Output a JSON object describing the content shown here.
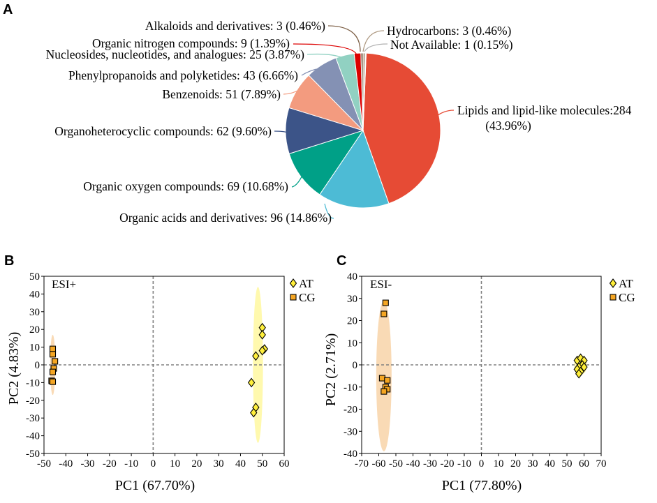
{
  "panels": {
    "a": "A",
    "b": "B",
    "c": "C"
  },
  "chart_data": [
    {
      "type": "pie",
      "panel": "A",
      "slices": [
        {
          "name": "Lipids and lipid-like molecules",
          "count": 284,
          "percent": 43.96,
          "color": "#e64b35",
          "label": "Lipids and lipid-like molecules:284",
          "label2": "(43.96%)"
        },
        {
          "name": "Organic acids and derivatives",
          "count": 96,
          "percent": 14.86,
          "color": "#4dbbd5",
          "label": "Organic acids and derivatives: 96 (14.86%)"
        },
        {
          "name": "Organic oxygen compounds",
          "count": 69,
          "percent": 10.68,
          "color": "#00a087",
          "label": "Organic oxygen compounds: 69 (10.68%)"
        },
        {
          "name": "Organoheterocyclic compounds",
          "count": 62,
          "percent": 9.6,
          "color": "#3c5488",
          "label": "Organoheterocyclic compounds: 62 (9.60%)"
        },
        {
          "name": "Benzenoids",
          "count": 51,
          "percent": 7.89,
          "color": "#f39b7f",
          "label": "Benzenoids: 51 (7.89%)"
        },
        {
          "name": "Phenylpropanoids and polyketides",
          "count": 43,
          "percent": 6.66,
          "color": "#8491b4",
          "label": "Phenylpropanoids and polyketides: 43 (6.66%)"
        },
        {
          "name": "Nucleosides, nucleotides, and analogues",
          "count": 25,
          "percent": 3.87,
          "color": "#91d1c2",
          "label": "Nucleosides, nucleotides, and analogues: 25 (3.87%)"
        },
        {
          "name": "Organic nitrogen compounds",
          "count": 9,
          "percent": 1.39,
          "color": "#dc0000",
          "label": "Organic nitrogen compounds: 9 (1.39%)"
        },
        {
          "name": "Alkaloids and derivatives",
          "count": 3,
          "percent": 0.46,
          "color": "#7e6148",
          "label": "Alkaloids and derivatives: 3 (0.46%)"
        },
        {
          "name": "Hydrocarbons",
          "count": 3,
          "percent": 0.46,
          "color": "#b09c85",
          "label": "Hydrocarbons: 3 (0.46%)"
        },
        {
          "name": "Not Available",
          "count": 1,
          "percent": 0.15,
          "color": "#c9c9c9",
          "label": "Not Available: 1 (0.15%)"
        }
      ]
    },
    {
      "type": "scatter",
      "panel": "B",
      "annotation": "ESI+",
      "xlabel": "PC1 (67.70%)",
      "ylabel": "PC2 (4.83%)",
      "xlim": [
        -50,
        60
      ],
      "ylim": [
        -50,
        50
      ],
      "xticks": [
        -50,
        -40,
        -30,
        -20,
        -10,
        0,
        10,
        20,
        30,
        40,
        50,
        60
      ],
      "yticks": [
        -50,
        -40,
        -30,
        -20,
        -10,
        0,
        10,
        20,
        30,
        40,
        50
      ],
      "legend": [
        "AT",
        "CG"
      ],
      "series": [
        {
          "name": "AT",
          "marker": "diamond",
          "color": "#ffef3a",
          "ellipse": {
            "cx": 48,
            "cy": 0,
            "rx": 2.3,
            "ry": 44
          },
          "points": [
            [
              50,
              21
            ],
            [
              50,
              17
            ],
            [
              51,
              9
            ],
            [
              50,
              8
            ],
            [
              47,
              5
            ],
            [
              45,
              -10
            ],
            [
              47,
              -24
            ],
            [
              46,
              -27
            ]
          ]
        },
        {
          "name": "CG",
          "marker": "square",
          "color": "#f5a623",
          "ellipse": {
            "cx": -46,
            "cy": 0,
            "rx": 1.2,
            "ry": 17
          },
          "points": [
            [
              -46,
              9
            ],
            [
              -46,
              6
            ],
            [
              -45,
              2
            ],
            [
              -45.5,
              -2
            ],
            [
              -46,
              -4
            ],
            [
              -46.5,
              -9
            ],
            [
              -46,
              -9.5
            ]
          ]
        }
      ]
    },
    {
      "type": "scatter",
      "panel": "C",
      "annotation": "ESI-",
      "xlabel": "PC1 (77.80%)",
      "ylabel": "PC2 (2.71%)",
      "xlim": [
        -70,
        70
      ],
      "ylim": [
        -40,
        40
      ],
      "xticks": [
        -70,
        -60,
        -50,
        -40,
        -30,
        -20,
        -10,
        0,
        10,
        20,
        30,
        40,
        50,
        60,
        70
      ],
      "yticks": [
        -40,
        -30,
        -20,
        -10,
        0,
        10,
        20,
        30,
        40
      ],
      "legend": [
        "AT",
        "CG"
      ],
      "series": [
        {
          "name": "AT",
          "marker": "diamond",
          "color": "#ffef3a",
          "ellipse": {
            "cx": 58,
            "cy": 0,
            "rx": 3.8,
            "ry": 4.5
          },
          "points": [
            [
              56,
              2
            ],
            [
              58,
              3
            ],
            [
              60,
              2
            ],
            [
              59,
              0
            ],
            [
              57,
              -1
            ],
            [
              60,
              -1
            ],
            [
              56,
              -2
            ],
            [
              58,
              -3
            ],
            [
              57,
              -4
            ]
          ]
        },
        {
          "name": "CG",
          "marker": "square",
          "color": "#f5a623",
          "ellipse": {
            "cx": -57,
            "cy": -5,
            "rx": 4.5,
            "ry": 34
          },
          "points": [
            [
              -56,
              28
            ],
            [
              -57,
              23
            ],
            [
              -58,
              -6
            ],
            [
              -55,
              -7
            ],
            [
              -56,
              -10
            ],
            [
              -55,
              -11
            ],
            [
              -57,
              -12
            ]
          ]
        }
      ]
    }
  ]
}
